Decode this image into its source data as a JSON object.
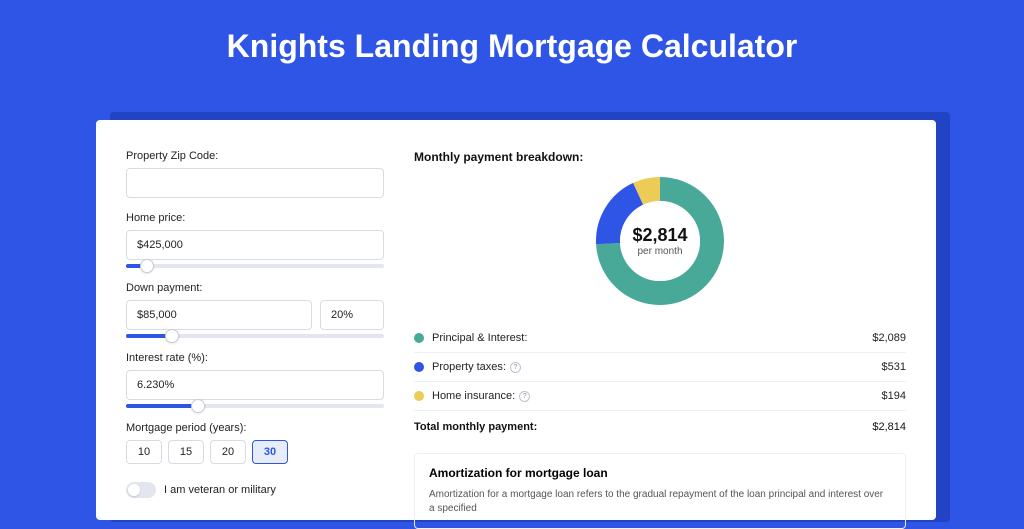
{
  "page": {
    "title": "Knights Landing Mortgage Calculator",
    "background_color": "#2f55e6",
    "shadow_color": "#2243c4",
    "card_background": "#ffffff"
  },
  "form": {
    "zip": {
      "label": "Property Zip Code:",
      "value": ""
    },
    "home_price": {
      "label": "Home price:",
      "value": "$425,000",
      "slider_fill_pct": 8
    },
    "down_payment": {
      "label": "Down payment:",
      "amount": "$85,000",
      "percent": "20%",
      "slider_fill_pct": 18
    },
    "interest_rate": {
      "label": "Interest rate (%):",
      "value": "6.230%",
      "slider_fill_pct": 28
    },
    "period": {
      "label": "Mortgage period (years):",
      "options": [
        "10",
        "15",
        "20",
        "30"
      ],
      "selected": "30"
    },
    "veteran": {
      "label": "I am veteran or military",
      "checked": false
    }
  },
  "breakdown": {
    "title": "Monthly payment breakdown:",
    "donut": {
      "amount": "$2,814",
      "sub": "per month",
      "slices": [
        {
          "label": "Principal & Interest",
          "color": "#48a999",
          "pct": 74.2
        },
        {
          "label": "Property taxes",
          "color": "#2f55e6",
          "pct": 18.9
        },
        {
          "label": "Home insurance",
          "color": "#eccb57",
          "pct": 6.9
        }
      ]
    },
    "items": [
      {
        "key": "principal_interest",
        "label": "Principal & Interest:",
        "value": "$2,089",
        "color": "#48a999",
        "has_info": false
      },
      {
        "key": "property_taxes",
        "label": "Property taxes:",
        "value": "$531",
        "color": "#2f55e6",
        "has_info": true
      },
      {
        "key": "home_insurance",
        "label": "Home insurance:",
        "value": "$194",
        "color": "#eccb57",
        "has_info": true
      }
    ],
    "total": {
      "label": "Total monthly payment:",
      "value": "$2,814"
    }
  },
  "amortization": {
    "title": "Amortization for mortgage loan",
    "text": "Amortization for a mortgage loan refers to the gradual repayment of the loan principal and interest over a specified"
  }
}
